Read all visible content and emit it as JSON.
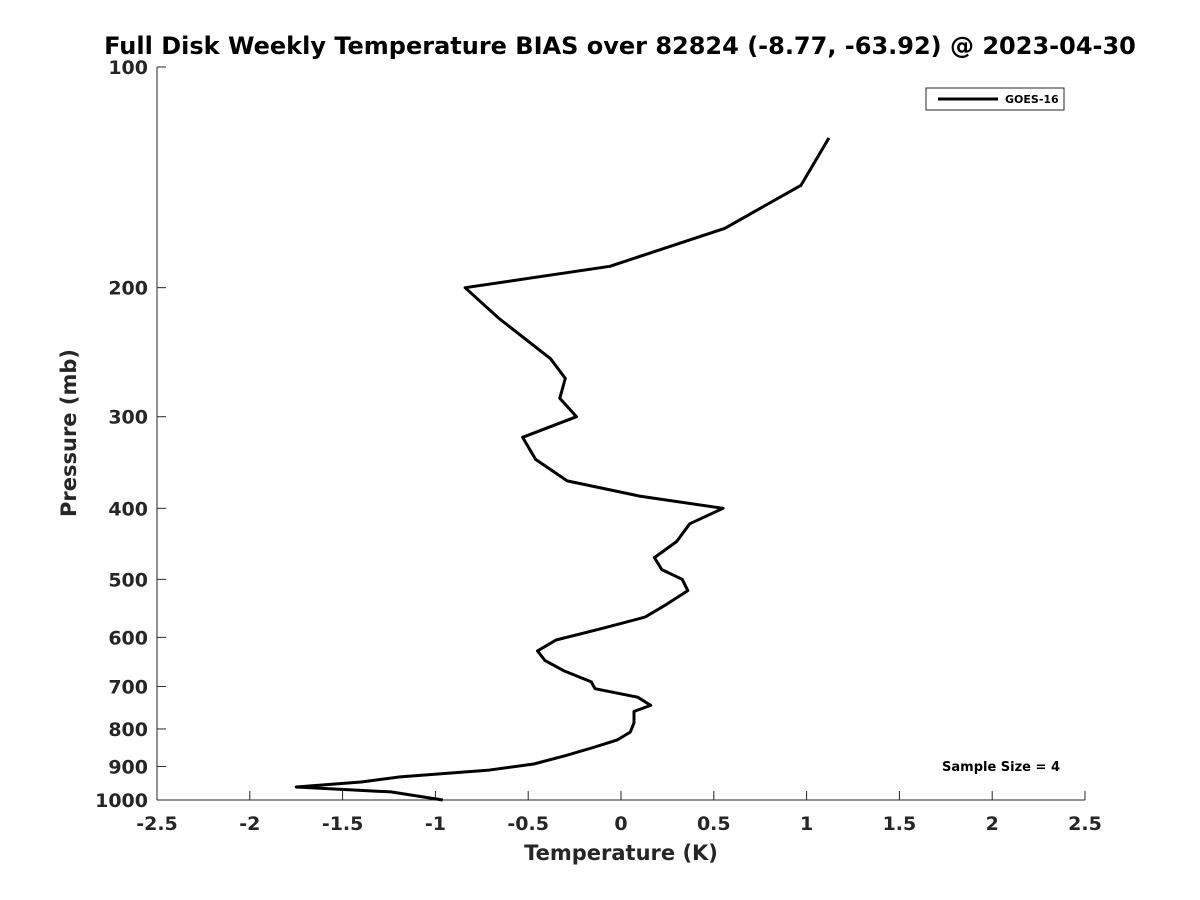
{
  "chart_data": {
    "type": "line",
    "title": "Full Disk Weekly Temperature BIAS over 82824 (-8.77, -63.92) @ 2023-04-30",
    "xlabel": "Temperature (K)",
    "ylabel": "Pressure (mb)",
    "xlim": [
      -2.5,
      2.5
    ],
    "ylim": [
      1000,
      100
    ],
    "y_scale": "log",
    "y_reversed": true,
    "grid": false,
    "legend_position": "top-right",
    "x_ticks": [
      -2.5,
      -2,
      -1.5,
      -1,
      -0.5,
      0,
      0.5,
      1,
      1.5,
      2,
      2.5
    ],
    "x_tick_labels": [
      "-2.5",
      "-2",
      "-1.5",
      "-1",
      "-0.5",
      "0",
      "0.5",
      "1",
      "1.5",
      "2",
      "2.5"
    ],
    "y_ticks": [
      100,
      200,
      300,
      400,
      500,
      600,
      700,
      800,
      900,
      1000
    ],
    "y_tick_labels": [
      "100",
      "200",
      "300",
      "400",
      "500",
      "600",
      "700",
      "800",
      "900",
      "1000"
    ],
    "series": [
      {
        "name": "GOES-16",
        "color": "#000000",
        "points": [
          {
            "x": 1.12,
            "y": 125
          },
          {
            "x": 0.97,
            "y": 145
          },
          {
            "x": 0.56,
            "y": 166
          },
          {
            "x": -0.06,
            "y": 187
          },
          {
            "x": -0.84,
            "y": 200
          },
          {
            "x": -0.66,
            "y": 220
          },
          {
            "x": -0.38,
            "y": 250
          },
          {
            "x": -0.3,
            "y": 266
          },
          {
            "x": -0.33,
            "y": 283
          },
          {
            "x": -0.24,
            "y": 300
          },
          {
            "x": -0.53,
            "y": 320
          },
          {
            "x": -0.46,
            "y": 343
          },
          {
            "x": -0.29,
            "y": 367
          },
          {
            "x": 0.1,
            "y": 385
          },
          {
            "x": 0.55,
            "y": 400
          },
          {
            "x": 0.37,
            "y": 420
          },
          {
            "x": 0.3,
            "y": 444
          },
          {
            "x": 0.18,
            "y": 467
          },
          {
            "x": 0.22,
            "y": 485
          },
          {
            "x": 0.33,
            "y": 500
          },
          {
            "x": 0.36,
            "y": 518
          },
          {
            "x": 0.24,
            "y": 542
          },
          {
            "x": 0.13,
            "y": 563
          },
          {
            "x": -0.12,
            "y": 585
          },
          {
            "x": -0.35,
            "y": 605
          },
          {
            "x": -0.45,
            "y": 626
          },
          {
            "x": -0.41,
            "y": 645
          },
          {
            "x": -0.31,
            "y": 666
          },
          {
            "x": -0.16,
            "y": 690
          },
          {
            "x": -0.14,
            "y": 705
          },
          {
            "x": 0.09,
            "y": 724
          },
          {
            "x": 0.16,
            "y": 743
          },
          {
            "x": 0.07,
            "y": 757
          },
          {
            "x": 0.07,
            "y": 785
          },
          {
            "x": 0.05,
            "y": 808
          },
          {
            "x": -0.02,
            "y": 828
          },
          {
            "x": -0.15,
            "y": 848
          },
          {
            "x": -0.3,
            "y": 870
          },
          {
            "x": -0.47,
            "y": 893
          },
          {
            "x": -0.72,
            "y": 911
          },
          {
            "x": -1.19,
            "y": 930
          },
          {
            "x": -1.4,
            "y": 945
          },
          {
            "x": -1.75,
            "y": 960
          },
          {
            "x": -1.24,
            "y": 975
          },
          {
            "x": -0.96,
            "y": 1000
          }
        ]
      }
    ],
    "annotations": [
      {
        "text": "Sample Size = 4",
        "position": "bottom-right"
      }
    ]
  }
}
